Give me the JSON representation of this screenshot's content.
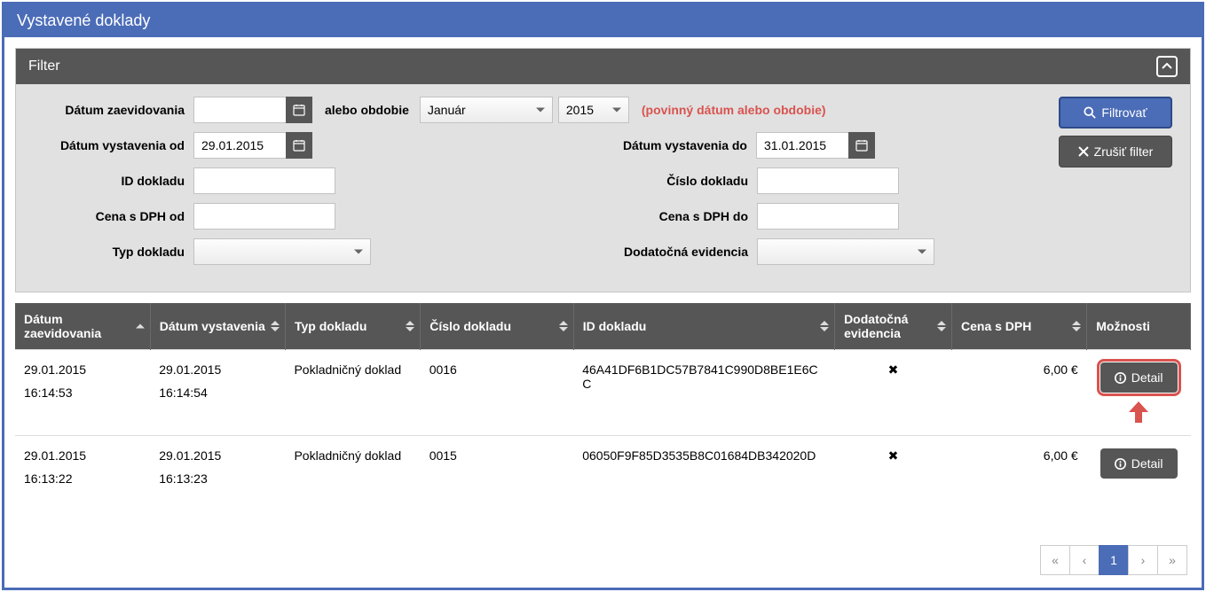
{
  "page": {
    "title": "Vystavené doklady"
  },
  "filter": {
    "header": "Filter",
    "labels": {
      "datum_zaevidovania": "Dátum zaevidovania",
      "alebo_obdobie": "alebo obdobie",
      "datum_vystavenia_od": "Dátum vystavenia od",
      "datum_vystavenia_do": "Dátum vystavenia do",
      "id_dokladu": "ID dokladu",
      "cislo_dokladu": "Číslo dokladu",
      "cena_od": "Cena s DPH od",
      "cena_do": "Cena s DPH do",
      "typ_dokladu": "Typ dokladu",
      "dodatocna_evidencia": "Dodatočná evidencia"
    },
    "values": {
      "datum_zaevidovania": "",
      "month": "Január",
      "year": "2015",
      "datum_vystavenia_od": "29.01.2015",
      "datum_vystavenia_do": "31.01.2015",
      "id_dokladu": "",
      "cislo_dokladu": "",
      "cena_od": "",
      "cena_do": "",
      "typ_dokladu": "",
      "dodatocna_evidencia": ""
    },
    "hint": "(povinný dátum alebo obdobie)",
    "buttons": {
      "filter": "Filtrovať",
      "cancel": "Zrušiť filter"
    }
  },
  "table": {
    "headers": {
      "datum_zaevidovania": "Dátum zaevidovania",
      "datum_vystavenia": "Dátum vystavenia",
      "typ_dokladu": "Typ dokladu",
      "cislo_dokladu": "Číslo dokladu",
      "id_dokladu": "ID dokladu",
      "dodatocna_evidencia": "Dodatočná evidencia",
      "cena": "Cena s DPH",
      "moznosti": "Možnosti"
    },
    "detail_label": "Detail",
    "rows": [
      {
        "datum_zaevidovania_date": "29.01.2015",
        "datum_zaevidovania_time": "16:14:53",
        "datum_vystavenia_date": "29.01.2015",
        "datum_vystavenia_time": "16:14:54",
        "typ": "Pokladničný doklad",
        "cislo": "0016",
        "id": "46A41DF6B1DC57B7841C990D8BE1E6CC",
        "evidencia": "✖",
        "cena": "6,00 €",
        "highlight": true
      },
      {
        "datum_zaevidovania_date": "29.01.2015",
        "datum_zaevidovania_time": "16:13:22",
        "datum_vystavenia_date": "29.01.2015",
        "datum_vystavenia_time": "16:13:23",
        "typ": "Pokladničný doklad",
        "cislo": "0015",
        "id": "06050F9F85D3535B8C01684DB342020D",
        "evidencia": "✖",
        "cena": "6,00 €",
        "highlight": false
      }
    ]
  },
  "pagination": {
    "first": "«",
    "prev": "‹",
    "current": "1",
    "next": "›",
    "last": "»"
  },
  "colors": {
    "primary": "#4B6CB7",
    "dark": "#565656",
    "danger": "#d9534f"
  }
}
